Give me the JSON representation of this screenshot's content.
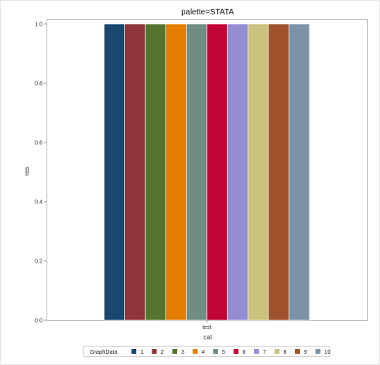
{
  "chart_data": {
    "type": "bar",
    "title": "palette=STATA",
    "xlabel": "cat",
    "ylabel": "res",
    "categories": [
      "test"
    ],
    "ylim": [
      0,
      1
    ],
    "yticks": [
      "0.0",
      "0.2",
      "0.4",
      "0.6",
      "0.8",
      "1.0"
    ],
    "grid": false,
    "legend": {
      "title": "GraphData",
      "placement": "bottom"
    },
    "series": [
      {
        "name": "1",
        "values": [
          1.0
        ],
        "color": "#1a476f"
      },
      {
        "name": "2",
        "values": [
          1.0
        ],
        "color": "#90353b"
      },
      {
        "name": "3",
        "values": [
          1.0
        ],
        "color": "#55752f"
      },
      {
        "name": "4",
        "values": [
          1.0
        ],
        "color": "#e37e00"
      },
      {
        "name": "5",
        "values": [
          1.0
        ],
        "color": "#6e8e84"
      },
      {
        "name": "6",
        "values": [
          1.0
        ],
        "color": "#c10534"
      },
      {
        "name": "7",
        "values": [
          1.0
        ],
        "color": "#938dd2"
      },
      {
        "name": "8",
        "values": [
          1.0
        ],
        "color": "#cac27e"
      },
      {
        "name": "9",
        "values": [
          1.0
        ],
        "color": "#a0522d"
      },
      {
        "name": "10",
        "values": [
          1.0
        ],
        "color": "#7b92a8"
      }
    ]
  }
}
